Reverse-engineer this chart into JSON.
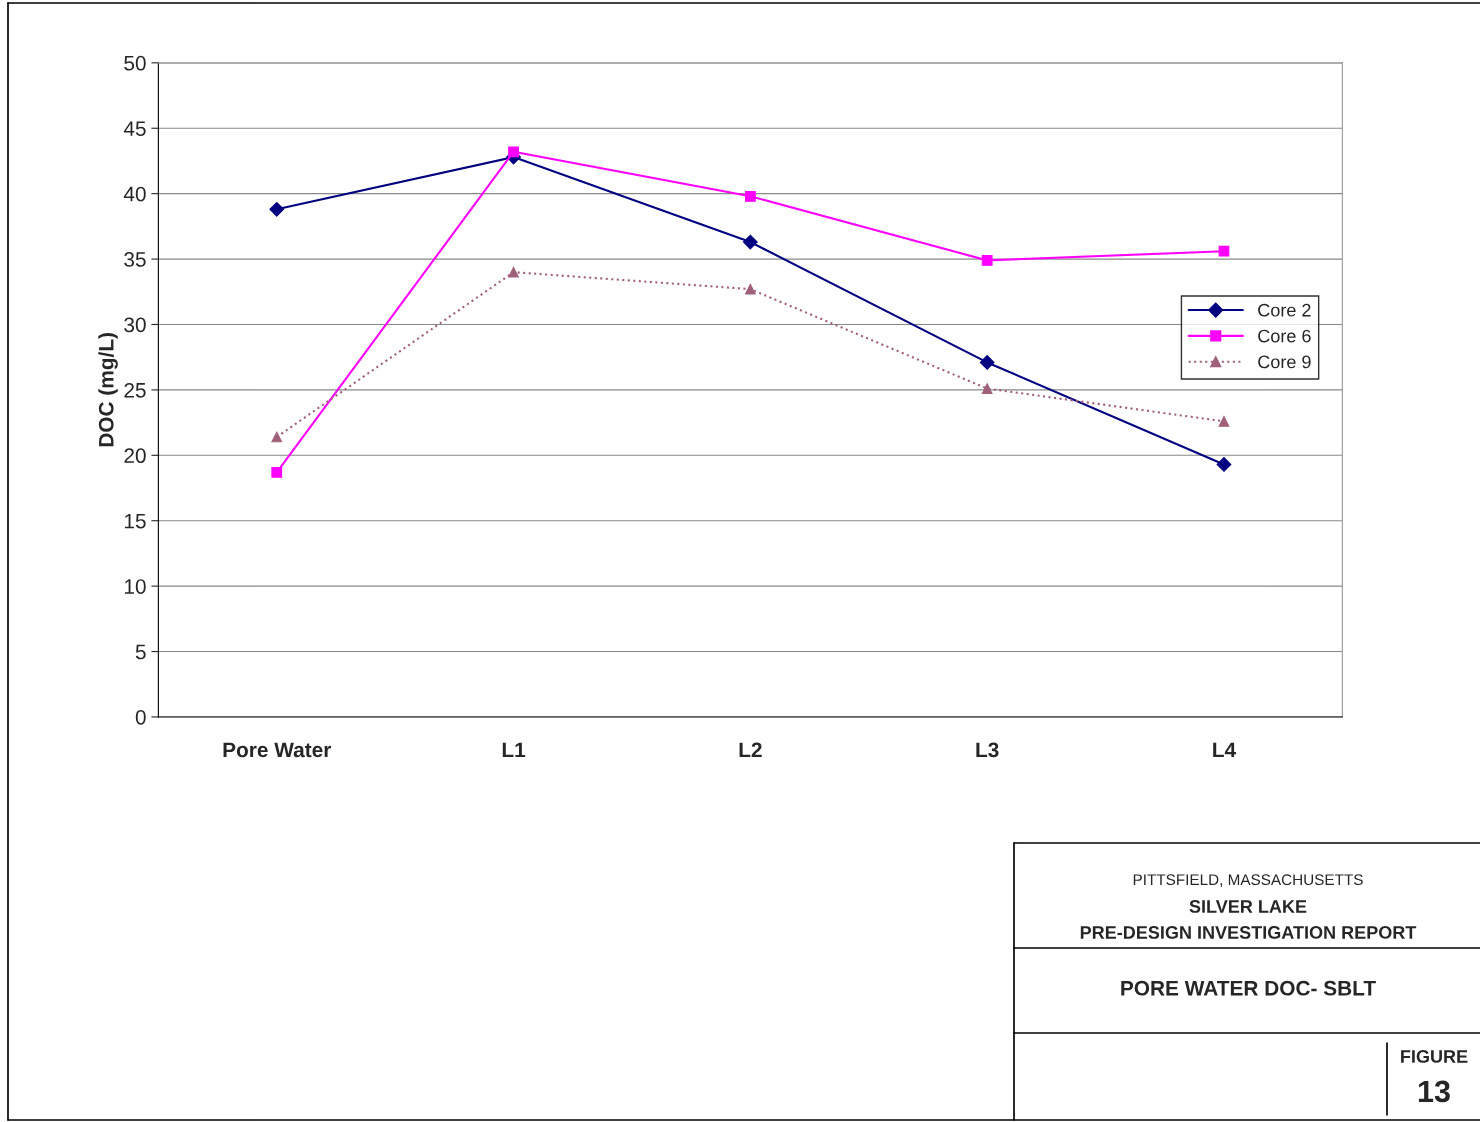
{
  "chart_data": {
    "type": "line",
    "ylabel": "DOC (mg/L)",
    "categories": [
      "Pore Water",
      "L1",
      "L2",
      "L3",
      "L4"
    ],
    "series": [
      {
        "name": "Core 2",
        "color": "#000080",
        "marker": "diamond",
        "line_style": "solid",
        "values": [
          38.8,
          42.8,
          36.3,
          27.1,
          19.3
        ]
      },
      {
        "name": "Core 6",
        "color": "#ff00ff",
        "marker": "square",
        "line_style": "solid",
        "values": [
          18.7,
          43.2,
          39.8,
          34.9,
          35.6
        ]
      },
      {
        "name": "Core 9",
        "color": "#a0607a",
        "marker": "triangle",
        "line_style": "dotted",
        "values": [
          21.4,
          34.0,
          32.7,
          25.1,
          22.6
        ]
      }
    ],
    "ylim": [
      0,
      50
    ],
    "yticks": [
      0,
      5,
      10,
      15,
      20,
      25,
      30,
      35,
      40,
      45,
      50
    ],
    "grid": "y",
    "legend": "right",
    "annotations": [
      "PITTSFIELD, MASSACHUSETTS",
      "SILVER LAKE",
      "PRE-DESIGN INVESTIGATION REPORT",
      "PORE WATER DOC- SBLT",
      "FIGURE",
      "13"
    ]
  }
}
